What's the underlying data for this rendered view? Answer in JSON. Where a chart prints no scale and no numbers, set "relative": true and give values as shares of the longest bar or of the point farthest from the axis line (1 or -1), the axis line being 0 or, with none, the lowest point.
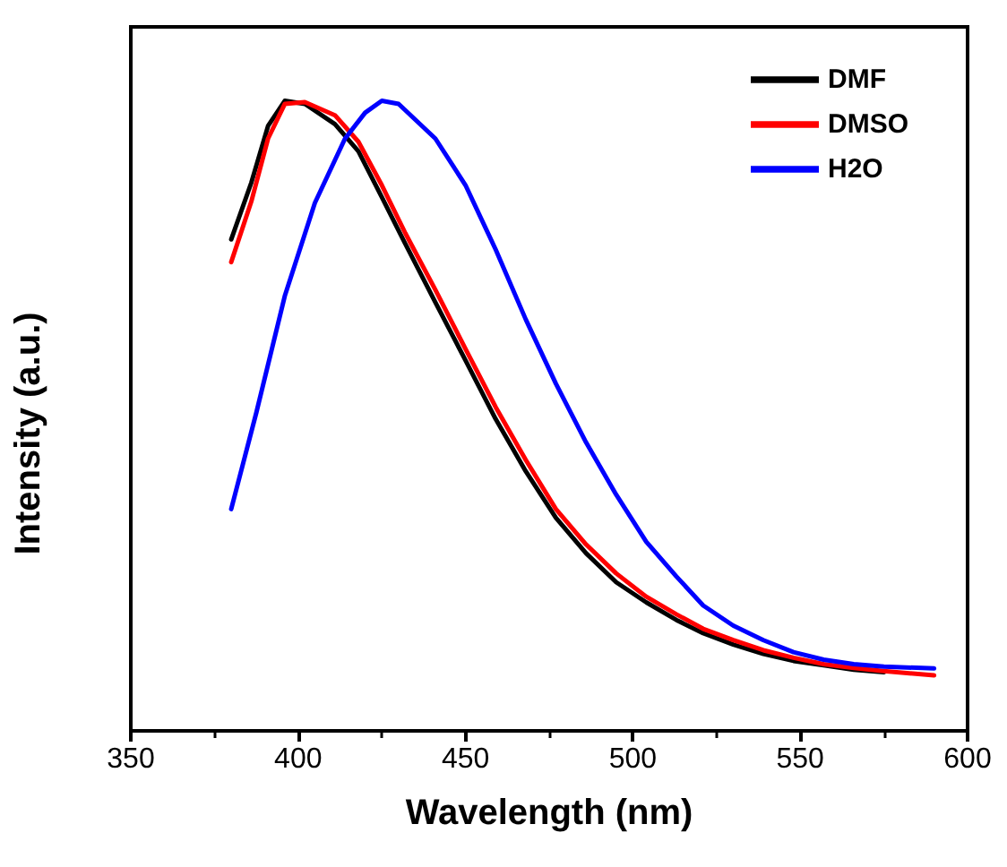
{
  "chart_data": {
    "type": "line",
    "xlabel": "Wavelength (nm)",
    "ylabel": "Intensity (a.u.)",
    "relative": true,
    "xlim": [
      350,
      600
    ],
    "xticks": [
      350,
      400,
      450,
      500,
      550,
      600
    ],
    "x": [
      380,
      386,
      391,
      396,
      402,
      411,
      418,
      425,
      432,
      441,
      450,
      459,
      468,
      477,
      486,
      495,
      504,
      513,
      521,
      530,
      539,
      548,
      557,
      566,
      575,
      590
    ],
    "series": [
      {
        "name": "DMF",
        "color": "#000000",
        "values": [
          0.78,
          0.87,
          0.96,
          1.0,
          0.995,
          0.963,
          0.92,
          0.847,
          0.773,
          0.68,
          0.588,
          0.495,
          0.412,
          0.338,
          0.282,
          0.236,
          0.204,
          0.176,
          0.155,
          0.137,
          0.122,
          0.111,
          0.104,
          0.097,
          0.093,
          null
        ]
      },
      {
        "name": "DMSO",
        "color": "#ff0000",
        "values": [
          0.744,
          0.84,
          0.94,
          0.995,
          0.998,
          0.977,
          0.935,
          0.866,
          0.79,
          0.7,
          0.606,
          0.514,
          0.43,
          0.352,
          0.296,
          0.25,
          0.213,
          0.185,
          0.162,
          0.144,
          0.128,
          0.116,
          0.106,
          0.1,
          0.095,
          0.088
        ]
      },
      {
        "name": "H2O",
        "color": "#0000ff",
        "x": [
          380,
          387.5,
          396,
          405,
          414,
          420,
          425,
          430,
          441,
          450,
          459,
          468,
          477,
          486,
          495,
          504,
          513,
          521,
          530,
          539,
          548,
          557,
          566,
          575,
          590
        ],
        "values": [
          0.352,
          0.505,
          0.69,
          0.838,
          0.94,
          0.981,
          1.0,
          0.995,
          0.94,
          0.866,
          0.764,
          0.653,
          0.551,
          0.458,
          0.375,
          0.3,
          0.245,
          0.199,
          0.167,
          0.144,
          0.125,
          0.113,
          0.106,
          0.102,
          0.099
        ]
      }
    ],
    "legend": "top right",
    "grid": false,
    "marker": "none",
    "line_style": "solid"
  }
}
